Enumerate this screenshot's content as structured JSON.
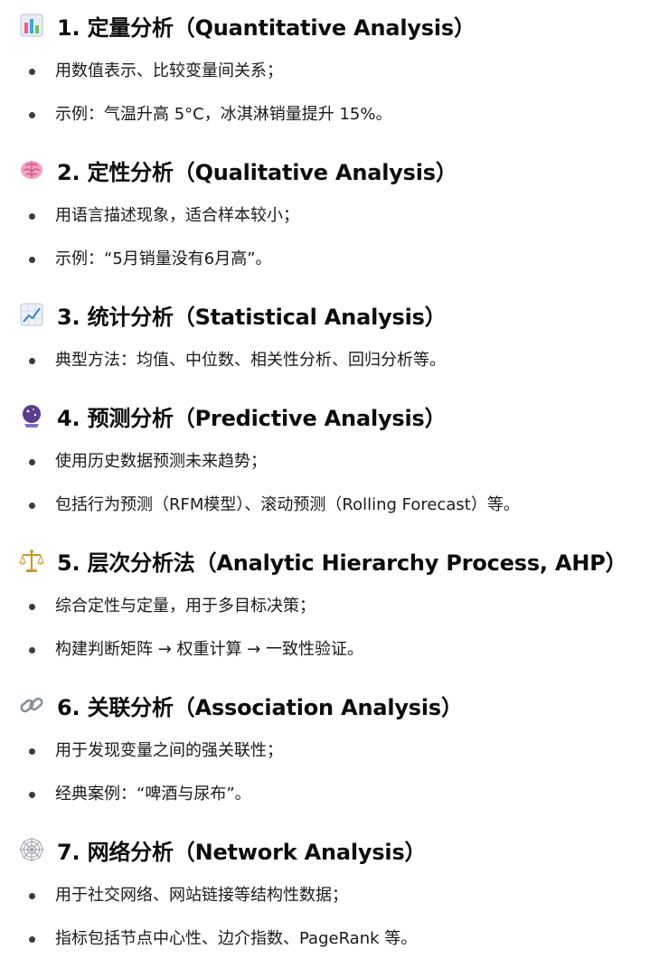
{
  "sections": [
    {
      "icon": "bar-chart-icon",
      "title": "1. 定量分析（Quantitative Analysis）",
      "bullets": [
        "用数值表示、比较变量间关系；",
        "示例：气温升高 5°C，冰淇淋销量提升 15%。"
      ]
    },
    {
      "icon": "brain-icon",
      "title": "2. 定性分析（Qualitative Analysis）",
      "bullets": [
        "用语言描述现象，适合样本较小；",
        "示例：“5月销量没有6月高”。"
      ]
    },
    {
      "icon": "trend-chart-icon",
      "title": "3. 统计分析（Statistical Analysis）",
      "bullets": [
        "典型方法：均值、中位数、相关性分析、回归分析等。"
      ]
    },
    {
      "icon": "crystal-ball-icon",
      "title": "4. 预测分析（Predictive Analysis）",
      "bullets": [
        "使用历史数据预测未来趋势；",
        "包括行为预测（RFM模型）、滚动预测（Rolling Forecast）等。"
      ]
    },
    {
      "icon": "balance-scale-icon",
      "title": "5. 层次分析法（Analytic Hierarchy Process, AHP）",
      "bullets": [
        "综合定性与定量，用于多目标决策；",
        "构建判断矩阵 → 权重计算 → 一致性验证。"
      ]
    },
    {
      "icon": "link-icon",
      "title": "6. 关联分析（Association Analysis）",
      "bullets": [
        "用于发现变量之间的强关联性；",
        "经典案例：“啤酒与尿布”。"
      ]
    },
    {
      "icon": "spider-web-icon",
      "title": "7. 网络分析（Network Analysis）",
      "bullets": [
        "用于社交网络、网站链接等结构性数据；",
        "指标包括节点中心性、边介指数、PageRank 等。"
      ]
    }
  ]
}
